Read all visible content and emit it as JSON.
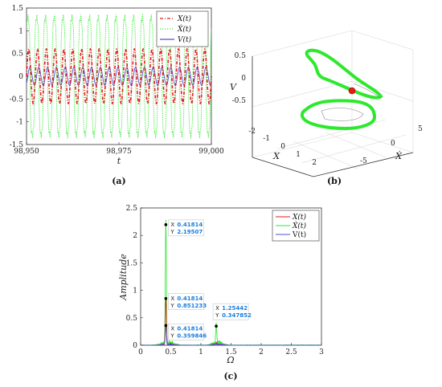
{
  "chart_data": [
    {
      "panel": "a",
      "type": "line",
      "caption": "(a)",
      "xlabel": "t",
      "xlim": [
        98950,
        99000
      ],
      "ylim": [
        -1.5,
        1.5
      ],
      "xticks": [
        "98,950",
        "98,975",
        "99,000"
      ],
      "yticks": [
        "1.5",
        "1",
        "0.5",
        "0",
        "-0.5",
        "-1",
        "-1.5"
      ],
      "legend_position": "top-right",
      "series": [
        {
          "name": "X(t)",
          "color": "#e41a1c",
          "style": "dash-dot",
          "amplitude": 0.6,
          "cycles": 21
        },
        {
          "name": "Ẋ(t)",
          "color": "#2ee82e",
          "style": "dotted",
          "amplitude": 1.3,
          "cycles": 21
        },
        {
          "name": "V(t)",
          "color": "#5050d0",
          "style": "solid",
          "amplitude": 0.2,
          "cycles": 21
        }
      ]
    },
    {
      "panel": "b",
      "type": "line",
      "caption": "(b)",
      "xlabel": "X",
      "ylabel": "Ẋ",
      "zlabel": "V",
      "xticks": [
        "-2",
        "-1",
        "0",
        "1",
        "2"
      ],
      "yticks": [
        "5",
        "0",
        "-5"
      ],
      "zticks": [
        "0.5",
        "0",
        "-0.5"
      ]
    },
    {
      "panel": "c",
      "type": "line",
      "caption": "(c)",
      "xlabel": "Ω",
      "ylabel": "Amplitude",
      "xlim": [
        0,
        3
      ],
      "ylim": [
        0,
        2.5
      ],
      "xticks": [
        "0",
        "0.5",
        "1",
        "1.5",
        "2",
        "2.5",
        "3"
      ],
      "yticks": [
        "0",
        "0.5",
        "1",
        "1.5",
        "2",
        "2.5"
      ],
      "legend_position": "top-right",
      "series": [
        {
          "name": "X(t)",
          "color": "#e41a1c",
          "peaks": [
            [
              0.41814,
              0.851233
            ],
            [
              1.25442,
              0.04
            ]
          ]
        },
        {
          "name": "Ẋ(t)",
          "color": "#2ee82e",
          "peaks": [
            [
              0.41814,
              2.19507
            ],
            [
              1.25442,
              0.347852
            ]
          ]
        },
        {
          "name": "V(t)",
          "color": "#5050d0",
          "peaks": [
            [
              0.41814,
              0.359846
            ],
            [
              1.25442,
              0.015
            ]
          ]
        }
      ],
      "datatips": [
        {
          "x_label": "X",
          "x": "0.41814",
          "y_label": "Y",
          "y": "2.19507"
        },
        {
          "x_label": "X",
          "x": "0.41814",
          "y_label": "Y",
          "y": "0.851233"
        },
        {
          "x_label": "X",
          "x": "0.41814",
          "y_label": "Y",
          "y": "0.359846"
        },
        {
          "x_label": "X",
          "x": "1.25442",
          "y_label": "Y",
          "y": "0.347852"
        }
      ]
    }
  ]
}
